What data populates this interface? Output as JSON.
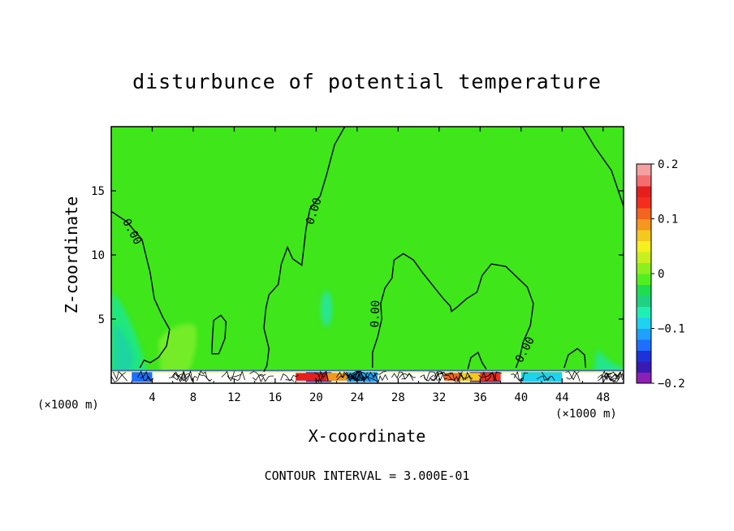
{
  "chart_data": {
    "type": "heatmap",
    "title": "disturbunce of potential temperature",
    "xlabel": "X-coordinate",
    "ylabel": "Z-coordinate",
    "x_unit_label_left": "(×1000 m)",
    "x_unit_label_right": "(×1000 m)",
    "footer": "CONTOUR INTERVAL = 3.000E-01",
    "xlim": [
      0,
      50
    ],
    "ylim": [
      0,
      20
    ],
    "x_ticks": [
      4,
      8,
      12,
      16,
      20,
      24,
      28,
      32,
      36,
      40,
      44,
      48
    ],
    "y_ticks": [
      5,
      10,
      15
    ],
    "colorbar": {
      "range": [
        -0.2,
        0.2
      ],
      "tick_labels": [
        "0.2",
        "0.1",
        "0",
        "−0.1",
        "−0.2"
      ],
      "colors": [
        "#8c1fb4",
        "#3a1ab4",
        "#1e32dc",
        "#1e6eff",
        "#1ea0ff",
        "#1ed2f0",
        "#1ef0b4",
        "#1ed282",
        "#1ede50",
        "#50f01e",
        "#8cf01e",
        "#c8f01e",
        "#f5f01e",
        "#f5c81e",
        "#f5961e",
        "#f5641e",
        "#f52d1e",
        "#e61e1e",
        "#f56e6e",
        "#f5a0a0"
      ]
    },
    "field_background_value": 0.0,
    "contour_labels": [
      {
        "text": "0.00",
        "x": 2,
        "z": 11.8
      },
      {
        "text": "0.00",
        "x": 19.8,
        "z": 13.4
      },
      {
        "text": "0.00",
        "x": 25.8,
        "z": 5.4
      },
      {
        "text": "0.00",
        "x": 40.4,
        "z": 2.6
      }
    ],
    "zero_contours": [
      [
        [
          0,
          13.4
        ],
        [
          1.5,
          12.6
        ],
        [
          3,
          11.2
        ],
        [
          3.8,
          8.6
        ],
        [
          4.2,
          6.6
        ],
        [
          5,
          5.2
        ],
        [
          5.7,
          4.2
        ],
        [
          5.4,
          2.9
        ],
        [
          4.6,
          2
        ],
        [
          3.8,
          1.6
        ],
        [
          3.2,
          1.8
        ],
        [
          2.8,
          1.2
        ]
      ],
      [
        [
          22.8,
          20
        ],
        [
          21.8,
          18.6
        ],
        [
          21,
          16.2
        ],
        [
          20.4,
          14.6
        ],
        [
          19.4,
          13.6
        ],
        [
          19,
          12
        ],
        [
          18.8,
          10.6
        ],
        [
          18.6,
          9.2
        ],
        [
          17.7,
          9.7
        ],
        [
          17.2,
          10.6
        ],
        [
          16.6,
          9.3
        ],
        [
          16.3,
          7.7
        ],
        [
          15.4,
          6.9
        ],
        [
          15.1,
          5.9
        ],
        [
          14.9,
          4.3
        ],
        [
          15.4,
          2.7
        ],
        [
          15.2,
          1.4
        ],
        [
          14.9,
          0.9
        ]
      ],
      [
        [
          46,
          20
        ],
        [
          47.2,
          18.4
        ],
        [
          48.8,
          16.6
        ],
        [
          50,
          13.8
        ]
      ],
      [
        [
          25.5,
          1.2
        ],
        [
          25.5,
          2.4
        ],
        [
          26,
          3.6
        ],
        [
          26.4,
          5
        ],
        [
          26.3,
          6.2
        ],
        [
          26.7,
          7.4
        ],
        [
          27.4,
          8.2
        ],
        [
          27.6,
          9.6
        ],
        [
          28.5,
          10.1
        ],
        [
          29.5,
          9.6
        ],
        [
          30.4,
          8.6
        ],
        [
          31.6,
          7.4
        ],
        [
          32.4,
          6.6
        ],
        [
          33.1,
          6
        ],
        [
          33.2,
          5.6
        ],
        [
          33.7,
          5.9
        ],
        [
          34.7,
          6.6
        ],
        [
          35.7,
          7.1
        ],
        [
          36.2,
          8.4
        ],
        [
          37.1,
          9.3
        ],
        [
          38.5,
          9.1
        ],
        [
          40.6,
          7.5
        ],
        [
          41.2,
          6.2
        ],
        [
          40.9,
          4.5
        ],
        [
          40.2,
          3.2
        ],
        [
          39.9,
          2.1
        ],
        [
          39.5,
          1.2
        ]
      ],
      [
        [
          9.8,
          2.3
        ],
        [
          9.9,
          3.8
        ],
        [
          10,
          4.9
        ],
        [
          10.7,
          5.3
        ],
        [
          11.2,
          4.8
        ],
        [
          11.1,
          3.5
        ],
        [
          10.5,
          2.3
        ],
        [
          9.8,
          2.3
        ]
      ],
      [
        [
          34.8,
          1.1
        ],
        [
          35.1,
          2
        ],
        [
          35.8,
          2.4
        ],
        [
          36.2,
          1.6
        ],
        [
          36.6,
          1.1
        ]
      ],
      [
        [
          44.2,
          1.2
        ],
        [
          44.6,
          2.2
        ],
        [
          45.5,
          2.7
        ],
        [
          46.2,
          2.2
        ],
        [
          46.3,
          1.2
        ]
      ]
    ]
  }
}
